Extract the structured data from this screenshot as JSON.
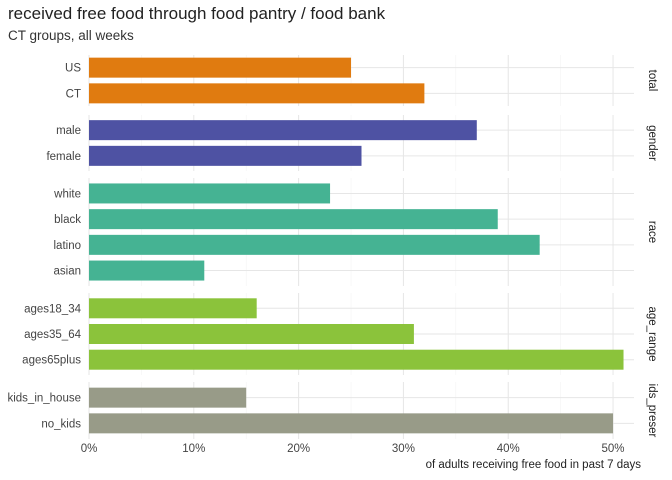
{
  "chart_data": {
    "type": "bar",
    "orientation": "horizontal",
    "title": "received free food through food pantry / food bank",
    "subtitle": "CT groups, all weeks",
    "xlabel": "of adults receiving free food in past 7 days",
    "ylabel": "",
    "xlim": [
      0,
      0.52
    ],
    "x_ticks": [
      0,
      0.1,
      0.2,
      0.3,
      0.4,
      0.5
    ],
    "x_tick_labels": [
      "0%",
      "10%",
      "20%",
      "30%",
      "40%",
      "50%"
    ],
    "grid": true,
    "legend": "none",
    "facets": [
      {
        "label": "total",
        "color": "#e07b10",
        "categories": [
          "US",
          "CT"
        ],
        "values": [
          0.25,
          0.32
        ]
      },
      {
        "label": "gender",
        "color": "#4e52a3",
        "categories": [
          "male",
          "female"
        ],
        "values": [
          0.37,
          0.26
        ]
      },
      {
        "label": "race",
        "color": "#45b393",
        "categories": [
          "white",
          "black",
          "latino",
          "asian"
        ],
        "values": [
          0.23,
          0.39,
          0.43,
          0.11
        ]
      },
      {
        "label": "age_range",
        "color": "#8bc33b",
        "categories": [
          "ages18_34",
          "ages35_64",
          "ages65plus"
        ],
        "values": [
          0.16,
          0.31,
          0.51
        ]
      },
      {
        "label": "ids_preser",
        "color": "#989b88",
        "categories": [
          "kids_in_house",
          "no_kids"
        ],
        "values": [
          0.15,
          0.5
        ]
      }
    ]
  }
}
